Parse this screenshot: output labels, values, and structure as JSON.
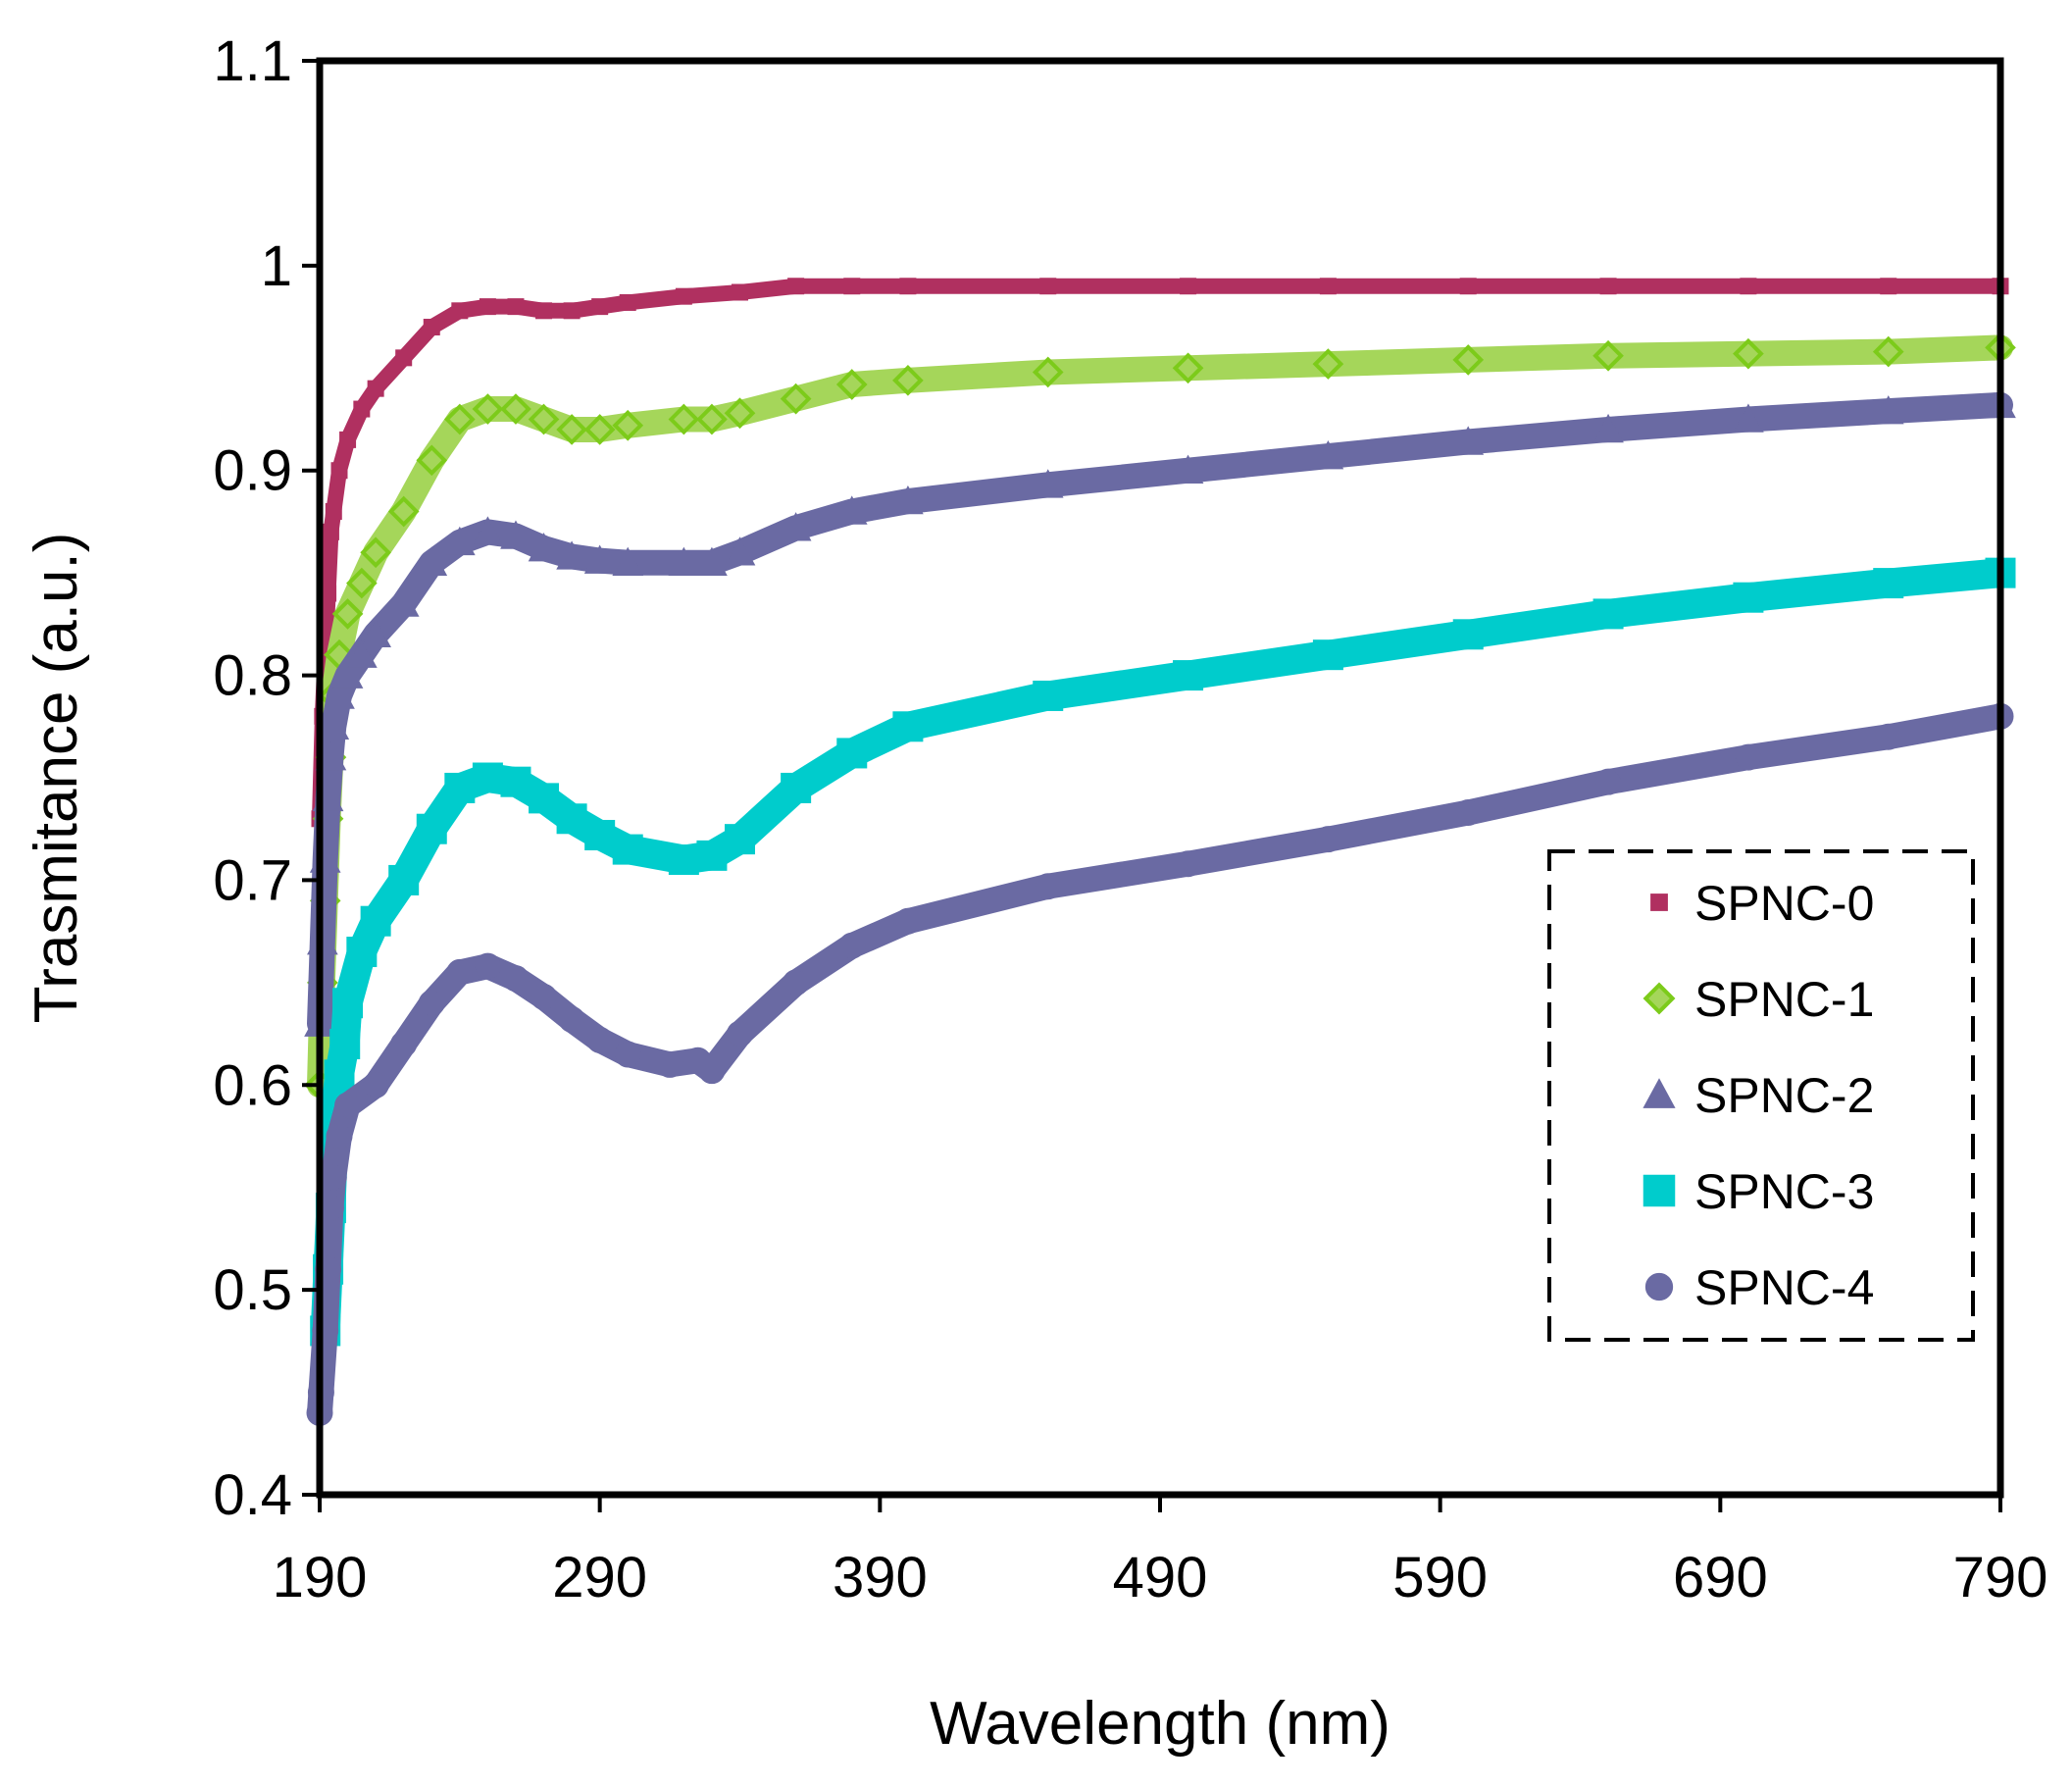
{
  "chart_data": {
    "type": "scatter",
    "title": "",
    "xlabel": "Wavelength (nm)",
    "ylabel": "Trasmitance (a.u.)",
    "xlim": [
      190,
      790
    ],
    "ylim": [
      0.4,
      1.1
    ],
    "x_ticks": [
      190,
      290,
      390,
      490,
      590,
      690,
      790
    ],
    "y_ticks": [
      0.4,
      0.5,
      0.6,
      0.7,
      0.8,
      0.9,
      1,
      1.1
    ],
    "x_tick_labels": [
      "190",
      "290",
      "390",
      "490",
      "590",
      "690",
      "790"
    ],
    "y_tick_labels": [
      "0.4",
      "0.5",
      "0.6",
      "0.7",
      "0.8",
      "0.9",
      "1",
      "1.1"
    ],
    "grid": false,
    "legend_position": "right",
    "legend_border": "dashed",
    "series": [
      {
        "name": "SPNC-0",
        "marker": "square-small",
        "color": "#B03060",
        "outline": "#B03060",
        "points": [
          [
            190,
            0.73
          ],
          [
            191,
            0.78
          ],
          [
            192,
            0.81
          ],
          [
            193,
            0.84
          ],
          [
            194,
            0.87
          ],
          [
            195,
            0.88
          ],
          [
            197,
            0.9
          ],
          [
            200,
            0.915
          ],
          [
            205,
            0.93
          ],
          [
            210,
            0.94
          ],
          [
            220,
            0.955
          ],
          [
            230,
            0.97
          ],
          [
            240,
            0.978
          ],
          [
            250,
            0.98
          ],
          [
            260,
            0.98
          ],
          [
            270,
            0.978
          ],
          [
            280,
            0.978
          ],
          [
            290,
            0.98
          ],
          [
            300,
            0.982
          ],
          [
            320,
            0.985
          ],
          [
            340,
            0.987
          ],
          [
            360,
            0.99
          ],
          [
            380,
            0.99
          ],
          [
            400,
            0.99
          ],
          [
            450,
            0.99
          ],
          [
            500,
            0.99
          ],
          [
            550,
            0.99
          ],
          [
            600,
            0.99
          ],
          [
            650,
            0.99
          ],
          [
            700,
            0.99
          ],
          [
            750,
            0.99
          ],
          [
            790,
            0.99
          ]
        ]
      },
      {
        "name": "SPNC-1",
        "marker": "diamond",
        "color": "#A5D65A",
        "outline": "#7CCB1A",
        "points": [
          [
            190,
            0.6
          ],
          [
            191,
            0.65
          ],
          [
            192,
            0.69
          ],
          [
            193,
            0.73
          ],
          [
            194,
            0.76
          ],
          [
            195,
            0.79
          ],
          [
            197,
            0.81
          ],
          [
            200,
            0.83
          ],
          [
            205,
            0.845
          ],
          [
            210,
            0.86
          ],
          [
            220,
            0.88
          ],
          [
            230,
            0.905
          ],
          [
            240,
            0.925
          ],
          [
            250,
            0.93
          ],
          [
            260,
            0.93
          ],
          [
            270,
            0.925
          ],
          [
            280,
            0.92
          ],
          [
            290,
            0.92
          ],
          [
            300,
            0.922
          ],
          [
            320,
            0.925
          ],
          [
            330,
            0.925
          ],
          [
            340,
            0.928
          ],
          [
            360,
            0.935
          ],
          [
            380,
            0.942
          ],
          [
            400,
            0.944
          ],
          [
            450,
            0.948
          ],
          [
            500,
            0.95
          ],
          [
            550,
            0.952
          ],
          [
            600,
            0.954
          ],
          [
            650,
            0.956
          ],
          [
            700,
            0.957
          ],
          [
            750,
            0.958
          ],
          [
            790,
            0.96
          ]
        ]
      },
      {
        "name": "SPNC-2",
        "marker": "triangle",
        "color": "#6A6AA3",
        "outline": "#6A6AA3",
        "points": [
          [
            190,
            0.63
          ],
          [
            191,
            0.67
          ],
          [
            192,
            0.71
          ],
          [
            193,
            0.74
          ],
          [
            194,
            0.76
          ],
          [
            195,
            0.775
          ],
          [
            197,
            0.79
          ],
          [
            200,
            0.8
          ],
          [
            205,
            0.81
          ],
          [
            210,
            0.82
          ],
          [
            220,
            0.835
          ],
          [
            230,
            0.855
          ],
          [
            240,
            0.865
          ],
          [
            250,
            0.87
          ],
          [
            260,
            0.868
          ],
          [
            270,
            0.862
          ],
          [
            280,
            0.858
          ],
          [
            290,
            0.856
          ],
          [
            300,
            0.855
          ],
          [
            320,
            0.855
          ],
          [
            330,
            0.855
          ],
          [
            340,
            0.86
          ],
          [
            360,
            0.872
          ],
          [
            380,
            0.88
          ],
          [
            400,
            0.885
          ],
          [
            450,
            0.893
          ],
          [
            500,
            0.9
          ],
          [
            550,
            0.907
          ],
          [
            600,
            0.914
          ],
          [
            650,
            0.92
          ],
          [
            700,
            0.925
          ],
          [
            750,
            0.929
          ],
          [
            790,
            0.932
          ]
        ]
      },
      {
        "name": "SPNC-3",
        "marker": "square",
        "color": "#00CCCC",
        "outline": "#00CCCC",
        "points": [
          [
            192,
            0.48
          ],
          [
            193,
            0.51
          ],
          [
            194,
            0.54
          ],
          [
            195,
            0.575
          ],
          [
            197,
            0.605
          ],
          [
            199,
            0.62
          ],
          [
            200,
            0.64
          ],
          [
            205,
            0.665
          ],
          [
            210,
            0.68
          ],
          [
            220,
            0.7
          ],
          [
            230,
            0.725
          ],
          [
            240,
            0.745
          ],
          [
            250,
            0.75
          ],
          [
            260,
            0.748
          ],
          [
            270,
            0.74
          ],
          [
            280,
            0.73
          ],
          [
            290,
            0.722
          ],
          [
            300,
            0.715
          ],
          [
            320,
            0.71
          ],
          [
            330,
            0.712
          ],
          [
            340,
            0.72
          ],
          [
            360,
            0.745
          ],
          [
            380,
            0.762
          ],
          [
            400,
            0.775
          ],
          [
            450,
            0.79
          ],
          [
            500,
            0.8
          ],
          [
            550,
            0.81
          ],
          [
            600,
            0.82
          ],
          [
            650,
            0.83
          ],
          [
            700,
            0.838
          ],
          [
            750,
            0.845
          ],
          [
            790,
            0.85
          ]
        ]
      },
      {
        "name": "SPNC-4",
        "marker": "circle",
        "color": "#6A6AA3",
        "outline": "#6A6AA3",
        "points": [
          [
            190,
            0.44
          ],
          [
            190.5,
            0.45
          ],
          [
            192,
            0.48
          ],
          [
            193,
            0.51
          ],
          [
            194,
            0.54
          ],
          [
            195,
            0.555
          ],
          [
            197,
            0.575
          ],
          [
            200,
            0.59
          ],
          [
            210,
            0.6
          ],
          [
            220,
            0.62
          ],
          [
            230,
            0.64
          ],
          [
            240,
            0.655
          ],
          [
            250,
            0.658
          ],
          [
            260,
            0.652
          ],
          [
            270,
            0.643
          ],
          [
            280,
            0.632
          ],
          [
            290,
            0.622
          ],
          [
            300,
            0.615
          ],
          [
            315,
            0.61
          ],
          [
            325,
            0.612
          ],
          [
            330,
            0.607
          ],
          [
            340,
            0.625
          ],
          [
            360,
            0.65
          ],
          [
            380,
            0.668
          ],
          [
            400,
            0.68
          ],
          [
            450,
            0.697
          ],
          [
            500,
            0.708
          ],
          [
            550,
            0.72
          ],
          [
            600,
            0.733
          ],
          [
            650,
            0.748
          ],
          [
            700,
            0.76
          ],
          [
            750,
            0.77
          ],
          [
            790,
            0.78
          ]
        ]
      }
    ]
  }
}
